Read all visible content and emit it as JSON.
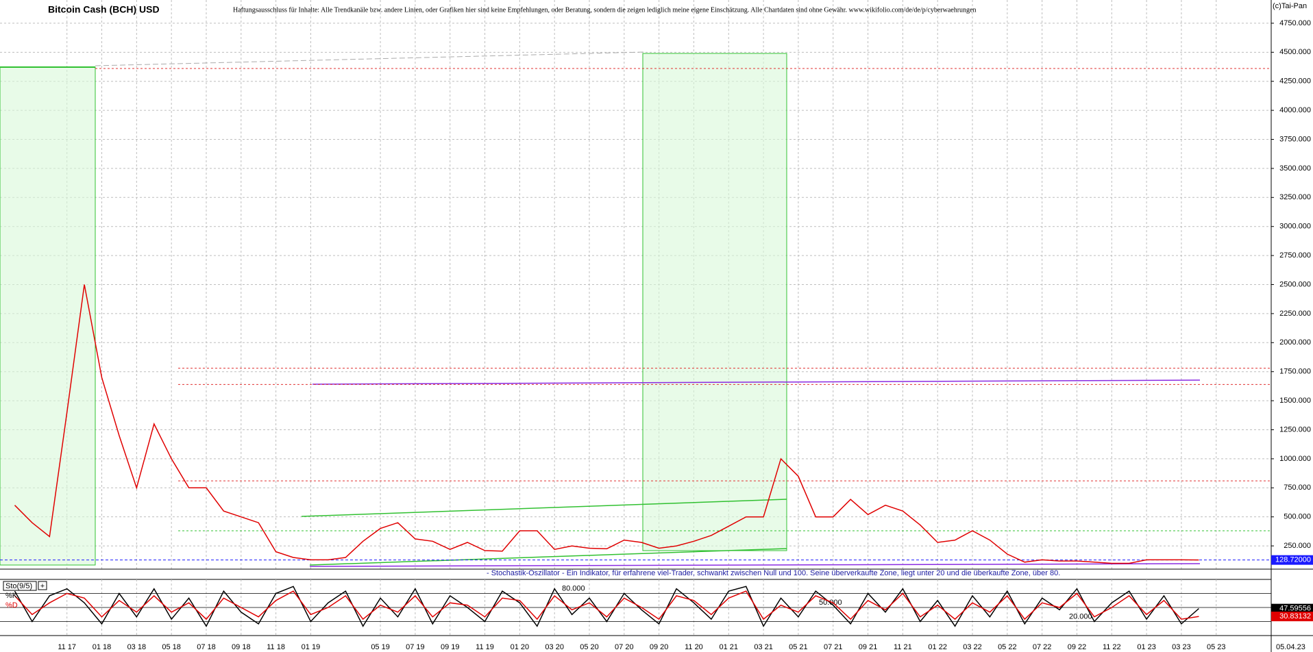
{
  "chart_data": {
    "type": "line",
    "title": "Bitcoin Cash (BCH) USD",
    "disclaimer": "Haftungsausschluss für Inhalte: Alle Trendkanäle bzw. andere Linien, oder Grafiken hier sind keine Empfehlungen, oder Beratung, sondern die zeigen lediglich meine eigene Einschätzung. Alle Chartdaten sind ohne Gewähr.  www.wikifolio.com/de/de/p/cyberwaehrungen",
    "copyright": "(c)Tai-Pan",
    "categories": [
      null,
      null,
      null,
      "11 17",
      null,
      "01 18",
      null,
      "03 18",
      null,
      "05 18",
      null,
      "07 18",
      null,
      "09 18",
      null,
      "11 18",
      null,
      "01 19",
      null,
      null,
      null,
      "05 19",
      null,
      "07 19",
      null,
      "09 19",
      null,
      "11 19",
      null,
      "01 20",
      null,
      "03 20",
      null,
      "05 20",
      null,
      "07 20",
      null,
      "09 20",
      null,
      "11 20",
      null,
      "01 21",
      null,
      "03 21",
      null,
      "05 21",
      null,
      "07 21",
      null,
      "09 21",
      null,
      "11 21",
      null,
      "01 22",
      null,
      "03 22",
      null,
      "05 22",
      null,
      "07 22",
      null,
      "09 22",
      null,
      "11 22",
      null,
      "01 23",
      null,
      "03 23",
      null,
      "05 23"
    ],
    "last_date": "05.04.23",
    "series": [
      {
        "name": "BCH",
        "color": "#e00000",
        "values": [
          600,
          450,
          330,
          1400,
          2500,
          1700,
          1200,
          750,
          1300,
          1000,
          750,
          750,
          550,
          500,
          450,
          200,
          150,
          130,
          130,
          150,
          290,
          400,
          450,
          310,
          290,
          220,
          280,
          210,
          205,
          380,
          380,
          220,
          250,
          230,
          225,
          300,
          280,
          230,
          250,
          290,
          340,
          420,
          500,
          500,
          1000,
          850,
          500,
          500,
          650,
          520,
          600,
          550,
          430,
          280,
          300,
          380,
          300,
          180,
          110,
          130,
          120,
          120,
          110,
          100,
          100,
          130,
          130,
          130,
          129,
          null
        ]
      }
    ],
    "ylim": [
      50,
      4950
    ],
    "yticks": [
      {
        "value": 250,
        "label": "250.000"
      },
      {
        "value": 500,
        "label": "500.000"
      },
      {
        "value": 750,
        "label": "750.000"
      },
      {
        "value": 1000,
        "label": "1000.000"
      },
      {
        "value": 1250,
        "label": "1250.000"
      },
      {
        "value": 1500,
        "label": "1500.000"
      },
      {
        "value": 1750,
        "label": "1750.000"
      },
      {
        "value": 2000,
        "label": "2000.000"
      },
      {
        "value": 2250,
        "label": "2250.000"
      },
      {
        "value": 2500,
        "label": "2500.000"
      },
      {
        "value": 2750,
        "label": "2750.000"
      },
      {
        "value": 3000,
        "label": "3000.000"
      },
      {
        "value": 3250,
        "label": "3250.000"
      },
      {
        "value": 3500,
        "label": "3500.000"
      },
      {
        "value": 3750,
        "label": "3750.000"
      },
      {
        "value": 4000,
        "label": "4000.000"
      },
      {
        "value": 4250,
        "label": "4250.000"
      },
      {
        "value": 4500,
        "label": "4500.000"
      },
      {
        "value": 4750,
        "label": "4750.000"
      }
    ],
    "grid": true,
    "current": {
      "value": 128.72,
      "label": "128.72000",
      "color": "#1a1aff"
    },
    "levels": [
      {
        "value": 4360,
        "color": "#e03030"
      },
      {
        "value": 1780,
        "color": "#e03030"
      },
      {
        "value": 1640,
        "color": "#e03030"
      },
      {
        "value": 810,
        "color": "#e03030"
      },
      {
        "value": 380,
        "color": "#30c030"
      }
    ],
    "indicator": {
      "title": "Sto(9/5)",
      "description": "- Stochastik-Oszillator - Ein Indikator, für erfahrene viel-Trader, schwankt zwischen Null und 100. Seine überverkaufte Zone, liegt unter 20 und die überkaufte Zone, über 80.",
      "ylim": [
        -10,
        110
      ],
      "yticks": [
        {
          "value": 20,
          "label": "20.000"
        },
        {
          "value": 50,
          "label": "50.000"
        },
        {
          "value": 80,
          "label": "80.000"
        }
      ],
      "series": [
        {
          "name": "%K",
          "color": "#000000",
          "values": [
            85,
            20,
            75,
            90,
            60,
            15,
            80,
            30,
            90,
            25,
            70,
            10,
            85,
            40,
            15,
            80,
            95,
            20,
            60,
            85,
            10,
            70,
            30,
            90,
            15,
            75,
            50,
            20,
            85,
            60,
            10,
            90,
            35,
            70,
            20,
            80,
            45,
            15,
            90,
            60,
            25,
            85,
            95,
            10,
            70,
            30,
            85,
            55,
            15,
            80,
            40,
            90,
            20,
            65,
            10,
            75,
            30,
            85,
            15,
            70,
            45,
            90,
            20,
            60,
            85,
            25,
            75,
            15,
            47.59556,
            null
          ]
        },
        {
          "name": "%D",
          "color": "#e00000",
          "values": [
            75,
            35,
            60,
            80,
            70,
            30,
            65,
            40,
            75,
            40,
            60,
            25,
            70,
            50,
            30,
            65,
            85,
            35,
            50,
            75,
            25,
            55,
            40,
            75,
            30,
            60,
            55,
            30,
            70,
            65,
            25,
            75,
            45,
            60,
            30,
            70,
            50,
            25,
            75,
            65,
            35,
            70,
            85,
            25,
            55,
            40,
            75,
            60,
            25,
            65,
            45,
            80,
            30,
            55,
            25,
            60,
            40,
            75,
            25,
            60,
            50,
            80,
            30,
            50,
            75,
            35,
            65,
            25,
            30.83132,
            null
          ]
        }
      ]
    }
  }
}
